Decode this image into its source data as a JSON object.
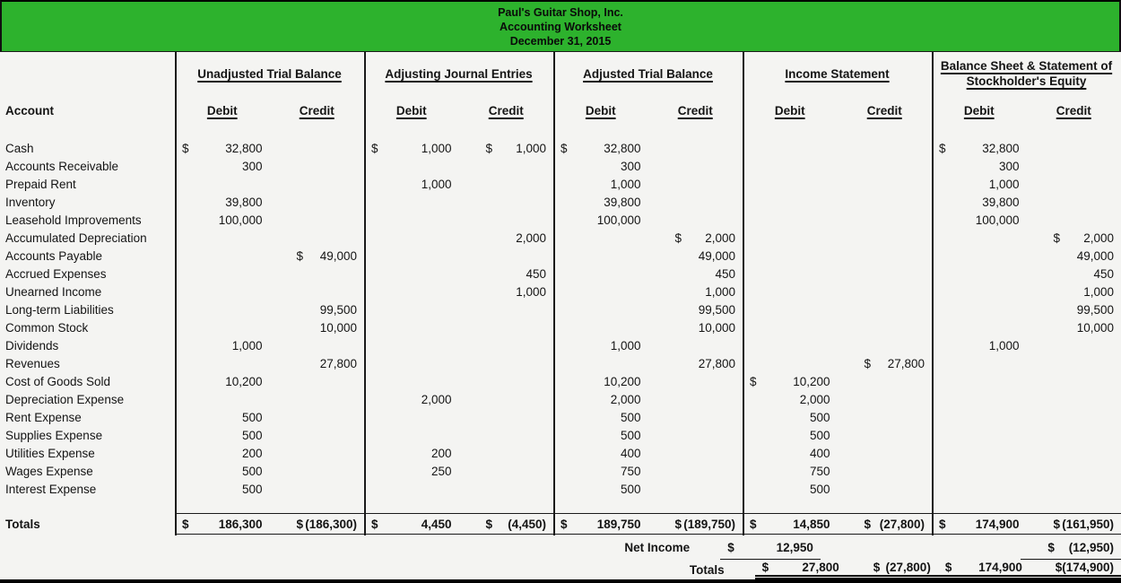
{
  "banner": {
    "company": "Paul's Guitar Shop, Inc.",
    "title": "Accounting Worksheet",
    "date": "December 31, 2015",
    "color": "#2db22d"
  },
  "table": {
    "account_header": "Account",
    "groups": [
      {
        "label": "Unadjusted Trial Balance"
      },
      {
        "label": "Adjusting Journal Entries"
      },
      {
        "label": "Adjusted Trial Balance"
      },
      {
        "label": "Income Statement"
      },
      {
        "label_line1": "Balance Sheet & Statement of",
        "label_line2": "Stockholder's Equity"
      }
    ],
    "sub_headers": {
      "debit": "Debit",
      "credit": "Credit"
    },
    "rows": [
      {
        "account": "Cash",
        "cells": [
          {
            "ds": "$",
            "v": "32,800"
          },
          null,
          {
            "ds": "$",
            "v": "1,000"
          },
          {
            "ds": "$",
            "v": "1,000"
          },
          {
            "ds": "$",
            "v": "32,800"
          },
          null,
          null,
          null,
          {
            "ds": "$",
            "v": "32,800"
          },
          null
        ]
      },
      {
        "account": "Accounts Receivable",
        "cells": [
          {
            "v": "300"
          },
          null,
          null,
          null,
          {
            "v": "300"
          },
          null,
          null,
          null,
          {
            "v": "300"
          },
          null
        ]
      },
      {
        "account": "Prepaid Rent",
        "cells": [
          null,
          null,
          {
            "v": "1,000"
          },
          null,
          {
            "v": "1,000"
          },
          null,
          null,
          null,
          {
            "v": "1,000"
          },
          null
        ]
      },
      {
        "account": "Inventory",
        "cells": [
          {
            "v": "39,800"
          },
          null,
          null,
          null,
          {
            "v": "39,800"
          },
          null,
          null,
          null,
          {
            "v": "39,800"
          },
          null
        ]
      },
      {
        "account": "Leasehold Improvements",
        "cells": [
          {
            "v": "100,000"
          },
          null,
          null,
          null,
          {
            "v": "100,000"
          },
          null,
          null,
          null,
          {
            "v": "100,000"
          },
          null
        ]
      },
      {
        "account": "Accumulated Depreciation",
        "cells": [
          null,
          null,
          null,
          {
            "v": "2,000"
          },
          null,
          {
            "ds": "$",
            "v": "2,000"
          },
          null,
          null,
          null,
          {
            "ds": "$",
            "v": "2,000"
          }
        ]
      },
      {
        "account": "Accounts Payable",
        "cells": [
          null,
          {
            "ds": "$",
            "v": "49,000"
          },
          null,
          null,
          null,
          {
            "v": "49,000"
          },
          null,
          null,
          null,
          {
            "v": "49,000"
          }
        ]
      },
      {
        "account": "Accrued Expenses",
        "cells": [
          null,
          null,
          null,
          {
            "v": "450"
          },
          null,
          {
            "v": "450"
          },
          null,
          null,
          null,
          {
            "v": "450"
          }
        ]
      },
      {
        "account": "Unearned Income",
        "cells": [
          null,
          null,
          null,
          {
            "v": "1,000"
          },
          null,
          {
            "v": "1,000"
          },
          null,
          null,
          null,
          {
            "v": "1,000"
          }
        ]
      },
      {
        "account": "Long-term Liabilities",
        "cells": [
          null,
          {
            "v": "99,500"
          },
          null,
          null,
          null,
          {
            "v": "99,500"
          },
          null,
          null,
          null,
          {
            "v": "99,500"
          }
        ]
      },
      {
        "account": "Common Stock",
        "cells": [
          null,
          {
            "v": "10,000"
          },
          null,
          null,
          null,
          {
            "v": "10,000"
          },
          null,
          null,
          null,
          {
            "v": "10,000"
          }
        ]
      },
      {
        "account": "Dividends",
        "cells": [
          {
            "v": "1,000"
          },
          null,
          null,
          null,
          {
            "v": "1,000"
          },
          null,
          null,
          null,
          {
            "v": "1,000"
          },
          null
        ]
      },
      {
        "account": "Revenues",
        "cells": [
          null,
          {
            "v": "27,800"
          },
          null,
          null,
          null,
          {
            "v": "27,800"
          },
          null,
          {
            "ds": "$",
            "v": "27,800"
          },
          null,
          null
        ]
      },
      {
        "account": "Cost of Goods Sold",
        "cells": [
          {
            "v": "10,200"
          },
          null,
          null,
          null,
          {
            "v": "10,200"
          },
          null,
          {
            "ds": "$",
            "v": "10,200"
          },
          null,
          null,
          null
        ]
      },
      {
        "account": "Depreciation Expense",
        "cells": [
          null,
          null,
          {
            "v": "2,000"
          },
          null,
          {
            "v": "2,000"
          },
          null,
          {
            "v": "2,000"
          },
          null,
          null,
          null
        ]
      },
      {
        "account": "Rent Expense",
        "cells": [
          {
            "v": "500"
          },
          null,
          null,
          null,
          {
            "v": "500"
          },
          null,
          {
            "v": "500"
          },
          null,
          null,
          null
        ]
      },
      {
        "account": "Supplies Expense",
        "cells": [
          {
            "v": "500"
          },
          null,
          null,
          null,
          {
            "v": "500"
          },
          null,
          {
            "v": "500"
          },
          null,
          null,
          null
        ]
      },
      {
        "account": "Utilities Expense",
        "cells": [
          {
            "v": "200"
          },
          null,
          {
            "v": "200"
          },
          null,
          {
            "v": "400"
          },
          null,
          {
            "v": "400"
          },
          null,
          null,
          null
        ]
      },
      {
        "account": "Wages Expense",
        "cells": [
          {
            "v": "500"
          },
          null,
          {
            "v": "250"
          },
          null,
          {
            "v": "750"
          },
          null,
          {
            "v": "750"
          },
          null,
          null,
          null
        ]
      },
      {
        "account": "Interest Expense",
        "cells": [
          {
            "v": "500"
          },
          null,
          null,
          null,
          {
            "v": "500"
          },
          null,
          {
            "v": "500"
          },
          null,
          null,
          null
        ]
      }
    ],
    "totals_row": {
      "label": "Totals",
      "cells": [
        {
          "ds": "$",
          "v": "186,300"
        },
        {
          "ds": "$",
          "v": "(186,300)"
        },
        {
          "ds": "$",
          "v": "4,450"
        },
        {
          "ds": "$",
          "v": "(4,450)"
        },
        {
          "ds": "$",
          "v": "189,750"
        },
        {
          "ds": "$",
          "v": "(189,750)"
        },
        {
          "ds": "$",
          "v": "14,850"
        },
        {
          "ds": "$",
          "v": "(27,800)"
        },
        {
          "ds": "$",
          "v": "174,900"
        },
        {
          "ds": "$",
          "v": "(161,950)"
        }
      ]
    },
    "net_income_row": {
      "label": "Net Income",
      "is_debit": {
        "ds": "$",
        "v": "12,950"
      },
      "bs_credit": {
        "ds": "$",
        "v": "(12,950)"
      }
    },
    "final_totals_row": {
      "label": "Totals",
      "is_debit": {
        "ds": "$",
        "v": "27,800"
      },
      "is_credit": {
        "ds": "$",
        "v": "(27,800)"
      },
      "bs_debit": {
        "ds": "$",
        "v": "174,900"
      },
      "bs_credit": {
        "ds": "$",
        "v": "(174,900)"
      }
    }
  }
}
